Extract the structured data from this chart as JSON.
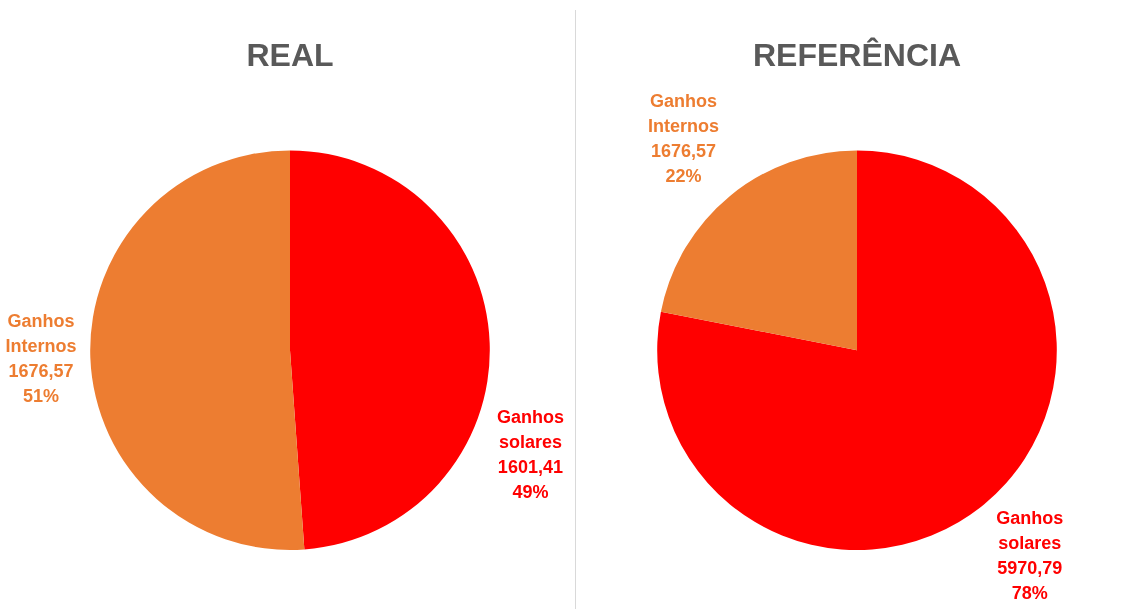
{
  "chart_data": [
    {
      "type": "pie",
      "title": "REAL",
      "categories": [
        "Ganhos solares",
        "Ganhos Internos"
      ],
      "values": [
        1601.41,
        1676.57
      ],
      "colors": [
        "#ff0000",
        "#ed7d31"
      ],
      "value_labels": [
        "1601,41\n49%",
        "1676,57\n51%"
      ],
      "legend": false
    },
    {
      "type": "pie",
      "title": "REFERÊNCIA",
      "categories": [
        "Ganhos solares",
        "Ganhos Internos"
      ],
      "values": [
        5970.79,
        1676.57
      ],
      "colors": [
        "#ff0000",
        "#ed7d31"
      ],
      "value_labels": [
        "5970,79\n78%",
        "1676,57\n22%"
      ],
      "legend": false
    }
  ]
}
